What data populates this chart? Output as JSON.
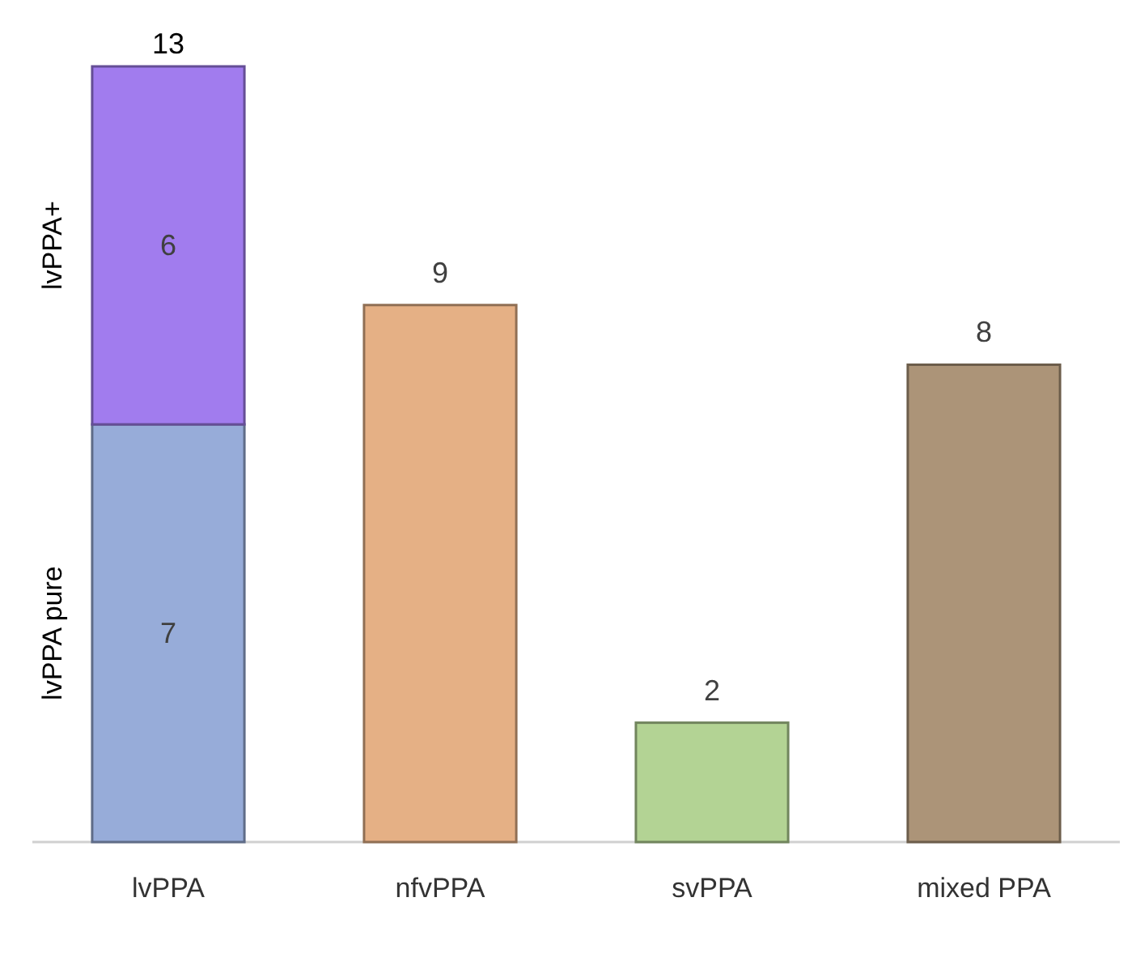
{
  "chart_data": {
    "type": "bar",
    "stacked": true,
    "categories": [
      "lvPPA",
      "nfvPPA",
      "svPPA",
      "mixed PPA"
    ],
    "series": [
      {
        "name": "lvPPA pure",
        "values": [
          7,
          9,
          2,
          8
        ],
        "colors": [
          "#97acd9",
          "#e5b085",
          "#b3d394",
          "#ac9478"
        ]
      },
      {
        "name": "lvPPA+",
        "values": [
          6,
          null,
          null,
          null
        ],
        "color": "#a17cee"
      }
    ],
    "ylim": [
      0,
      13
    ],
    "tick_labels": "x",
    "data_labels": true,
    "totals": [
      "13",
      null,
      null,
      null
    ]
  }
}
